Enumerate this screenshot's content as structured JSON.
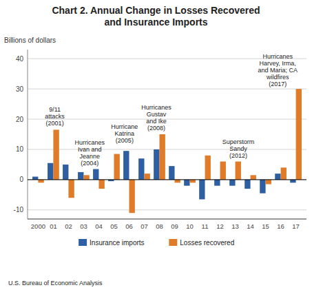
{
  "chart_data": {
    "type": "bar",
    "title": "Chart 2. Annual Change in Losses Recovered\nand Insurance Imports",
    "y_label": "Billions of dollars",
    "source": "U.S. Bureau of Economic Analysis",
    "categories": [
      "2000",
      "01",
      "02",
      "03",
      "04",
      "05",
      "06",
      "07",
      "08",
      "09",
      "10",
      "11",
      "12",
      "13",
      "14",
      "15",
      "16",
      "17"
    ],
    "series": [
      {
        "name": "Insurance imports",
        "color": "#2e5fa3",
        "values": [
          1.0,
          5.5,
          5.0,
          2.5,
          3.5,
          -0.5,
          9.5,
          7.0,
          10.0,
          4.5,
          -2.0,
          -6.5,
          -2.0,
          -2.0,
          -3.0,
          -4.5,
          2.0,
          -1.0
        ]
      },
      {
        "name": "Losses recovered",
        "color": "#e07b2a",
        "values": [
          -1.0,
          16.5,
          -6.0,
          1.5,
          -3.0,
          8.5,
          -11.0,
          2.0,
          15.0,
          -1.0,
          -1.0,
          8.0,
          6.0,
          6.0,
          1.5,
          -1.5,
          4.0,
          30.0
        ]
      }
    ],
    "annotations": [
      "9/11\nattacks\n(2001)",
      "Hurricanes\nIvan and\nJeanne\n(2004)",
      "Hurricane\nKatrina\n(2005)",
      "Hurricanes\nGustav\nand Ike\n(2008)",
      "Superstorm\nSandy\n(2012)",
      "Hurricanes\nHarvey, Irma,\nand Maria; CA\nwildfires\n(2017)"
    ],
    "ylim": [
      -13,
      43
    ],
    "yticks": [
      -10,
      0,
      10,
      20,
      30,
      40
    ],
    "grid": true,
    "legend": "bottom"
  }
}
